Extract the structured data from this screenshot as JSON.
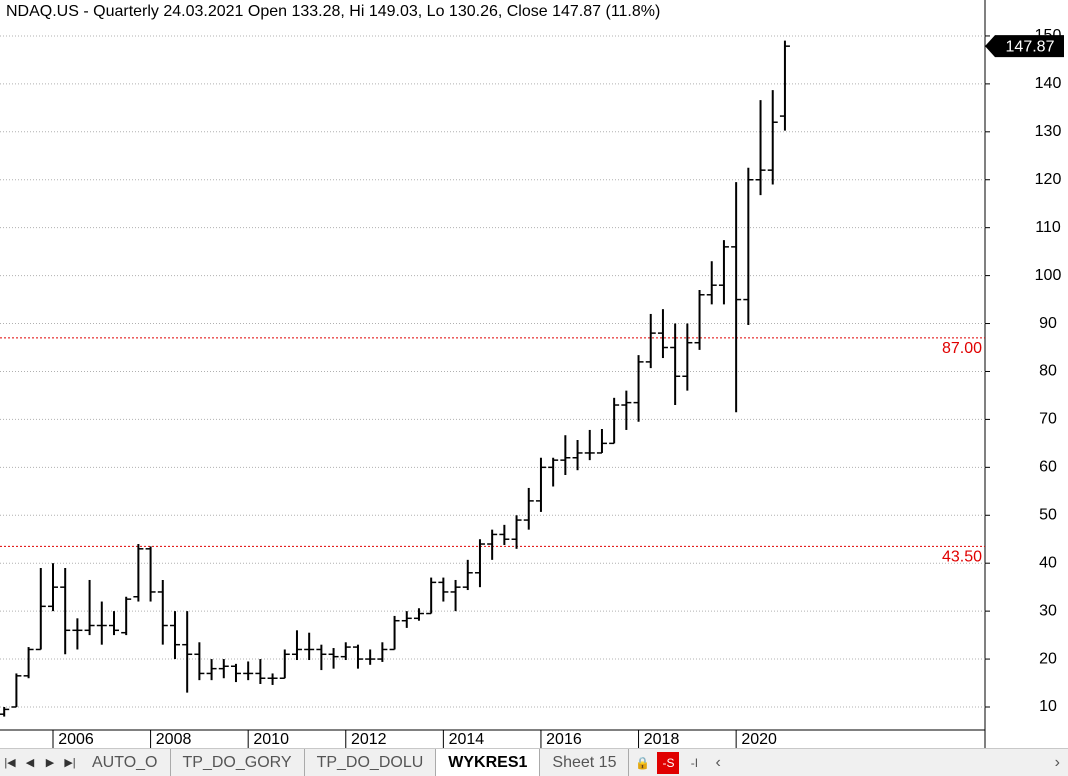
{
  "chart_data": {
    "type": "ohlc",
    "title": "NDAQ.US - Quarterly 24.03.2021 Open 133.28, Hi 149.03, Lo 130.26, Close 147.87 (11.8%)",
    "x": [
      2005,
      2005.25,
      2005.5,
      2005.75,
      2006,
      2006.25,
      2006.5,
      2006.75,
      2007,
      2007.25,
      2007.5,
      2007.75,
      2008,
      2008.25,
      2008.5,
      2008.75,
      2009,
      2009.25,
      2009.5,
      2009.75,
      2010,
      2010.25,
      2010.5,
      2010.75,
      2011,
      2011.25,
      2011.5,
      2011.75,
      2012,
      2012.25,
      2012.5,
      2012.75,
      2013,
      2013.25,
      2013.5,
      2013.75,
      2014,
      2014.25,
      2014.5,
      2014.75,
      2015,
      2015.25,
      2015.5,
      2015.75,
      2016,
      2016.25,
      2016.5,
      2016.75,
      2017,
      2017.25,
      2017.5,
      2017.75,
      2018,
      2018.25,
      2018.5,
      2018.75,
      2019,
      2019.25,
      2019.5,
      2019.75,
      2020,
      2020.25,
      2020.5,
      2020.75,
      2021
    ],
    "open": [
      8.5,
      10,
      16.5,
      22,
      31,
      35,
      26,
      26,
      27,
      27,
      25.5,
      33,
      43,
      34,
      27,
      23,
      21,
      17,
      18,
      18.5,
      17,
      17,
      16,
      16,
      21,
      22,
      22,
      21,
      20.5,
      22.5,
      20,
      20,
      22,
      28,
      28.5,
      29.5,
      36,
      34,
      35,
      38,
      44,
      46,
      45,
      49,
      53,
      60,
      61.5,
      62,
      63,
      63,
      65,
      73,
      73.5,
      82,
      88,
      85,
      79,
      86,
      96,
      98,
      106,
      95,
      120,
      122,
      133.28
    ],
    "high": [
      10,
      17,
      22.5,
      39,
      40,
      39,
      28.5,
      36.5,
      32,
      30,
      33,
      44,
      43.5,
      36.5,
      30,
      30,
      23.5,
      20,
      20,
      19,
      19.5,
      20,
      17,
      22,
      26,
      25.5,
      23,
      22.3,
      23.5,
      23,
      22,
      23.5,
      29,
      30,
      30.6,
      37,
      37,
      36.5,
      40.7,
      45,
      47,
      48,
      50,
      55.7,
      62,
      62,
      66.7,
      65.7,
      67.8,
      68,
      74.5,
      76,
      83.4,
      92,
      93,
      90,
      90,
      97,
      103,
      107.4,
      119.5,
      122.5,
      136.6,
      138.7,
      149.03
    ],
    "low": [
      8,
      10,
      16,
      22,
      30,
      21,
      22,
      25,
      23,
      25,
      25,
      32,
      32,
      23,
      20,
      13,
      15.6,
      15.6,
      16,
      15.2,
      15.6,
      14.8,
      14.6,
      16,
      19.8,
      19.8,
      17.7,
      18,
      19.8,
      18,
      18.8,
      19.4,
      22,
      26.5,
      28,
      29.5,
      32,
      30,
      34.4,
      35,
      40.7,
      43.8,
      43,
      47,
      50.7,
      56,
      58.4,
      59.4,
      61.5,
      63,
      65,
      67.8,
      69.5,
      80.7,
      82.8,
      73,
      76,
      84.5,
      94,
      94,
      71.5,
      89.7,
      116.8,
      119,
      130.26
    ],
    "close": [
      9.5,
      16.5,
      22,
      31,
      35,
      26,
      26,
      27,
      27,
      26,
      32.5,
      43,
      34,
      27,
      23,
      21,
      17,
      18,
      18.5,
      17,
      17,
      16,
      16,
      21,
      22,
      22,
      21,
      20.5,
      22.5,
      20,
      20,
      22,
      28,
      28.5,
      29.5,
      36,
      34,
      35,
      38,
      44,
      46,
      45,
      49,
      53,
      60,
      61.5,
      62,
      63,
      63,
      65,
      73,
      73.5,
      82,
      88,
      85,
      79,
      86,
      96,
      98,
      106,
      95,
      120,
      122,
      132,
      147.87
    ],
    "color": "#000000",
    "last_close_label": "147.87",
    "xlim": [
      2004.914,
      2025.1
    ],
    "xticks": [
      2006,
      2008,
      2010,
      2012,
      2014,
      2016,
      2018,
      2020
    ],
    "ylim": [
      5.2,
      157.5
    ],
    "yticks": [
      10,
      20,
      30,
      40,
      50,
      60,
      70,
      80,
      90,
      100,
      110,
      120,
      130,
      140,
      150
    ],
    "grid": true,
    "hlines": [
      {
        "value": 87,
        "label": "87.00",
        "color": "#e00000"
      },
      {
        "value": 43.5,
        "label": "43.50",
        "color": "#e00000"
      }
    ]
  },
  "tabs": [
    "AUTO_O",
    "TP_DO_GORY",
    "TP_DO_DOLU",
    "WYKRES1",
    "Sheet 15"
  ],
  "active_tab": 3,
  "buttons": [
    "-S",
    "-I"
  ]
}
